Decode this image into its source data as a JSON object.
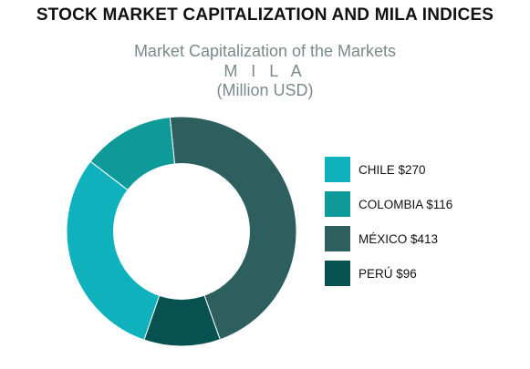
{
  "title": "STOCK MARKET CAPITALIZATION AND MILA INDICES",
  "subtitle_line1": "Market Capitalization of the Markets",
  "subtitle_line2": "M I L A",
  "subtitle_line3": "(Million USD)",
  "chart_data": {
    "type": "pie",
    "style": "donut",
    "legend_position": "right",
    "categories": [
      "CHILE",
      "COLOMBIA",
      "MÉXICO",
      "PERÚ"
    ],
    "values": [
      270,
      116,
      413,
      96
    ],
    "labels": [
      "CHILE $270",
      "COLOMBIA $116",
      "MÉXICO $413",
      "PERÚ $96"
    ],
    "colors": [
      "#0fb1bd",
      "#0d9a98",
      "#2e5f5f",
      "#075250"
    ]
  }
}
